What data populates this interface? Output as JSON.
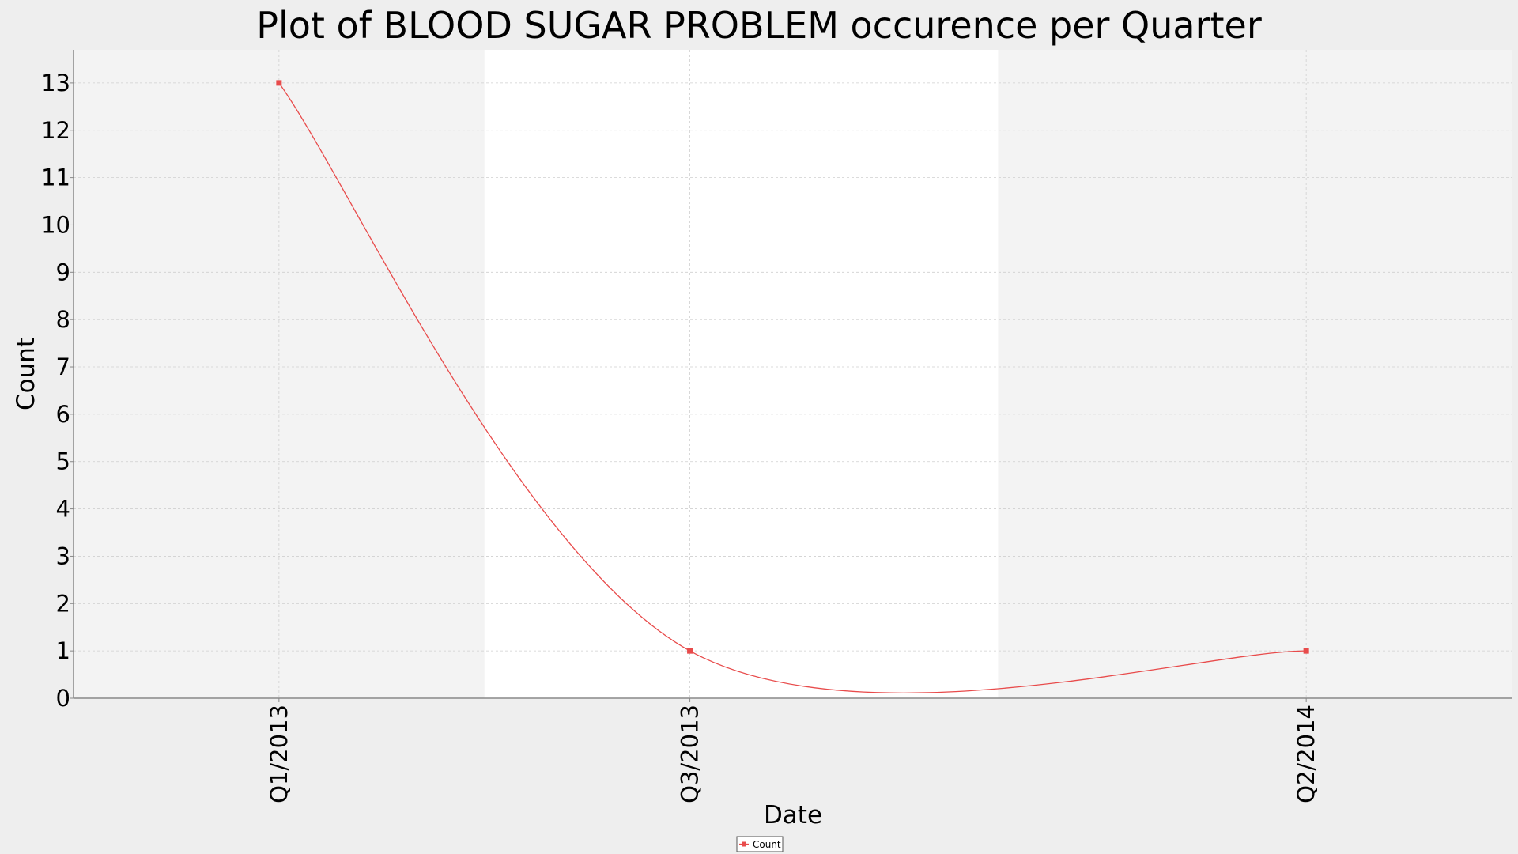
{
  "chart_data": {
    "type": "line",
    "title": "Plot of BLOOD SUGAR PROBLEM occurence per Quarter",
    "xlabel": "Date",
    "ylabel": "Count",
    "x_tick_labels": [
      "Q1/2013",
      "Q3/2013",
      "Q2/2014"
    ],
    "x_range": [
      "Q4/2012",
      "Q3/2014"
    ],
    "y_ticks": [
      0,
      1,
      2,
      3,
      4,
      5,
      6,
      7,
      8,
      9,
      10,
      11,
      12,
      13
    ],
    "ylim": [
      0,
      13.7
    ],
    "grid": true,
    "legend_position": "bottom-center",
    "series": [
      {
        "name": "Count",
        "color": "#e84b4b",
        "marker": "square",
        "points": [
          {
            "x": "Q1/2013",
            "y": 13
          },
          {
            "x": "Q3/2013",
            "y": 1
          },
          {
            "x": "Q2/2014",
            "y": 1
          }
        ]
      }
    ],
    "plot_background": "#f3f3f3",
    "alternate_band_color": "#ffffff"
  }
}
